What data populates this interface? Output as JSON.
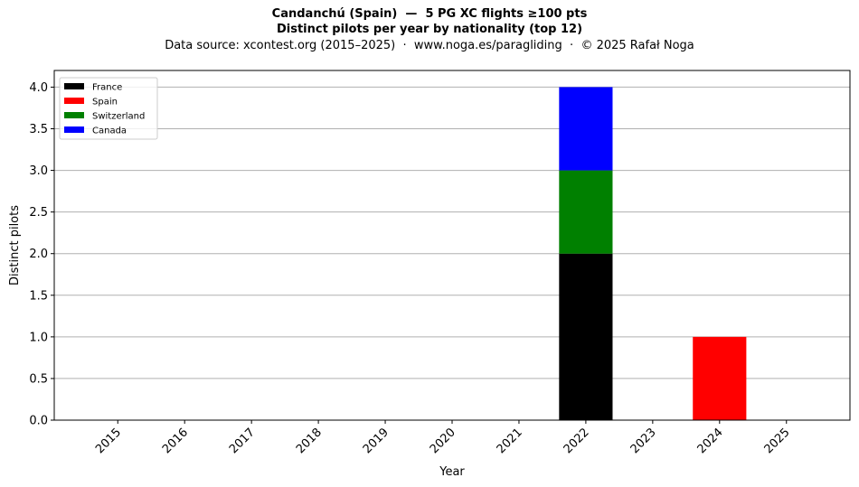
{
  "header": {
    "title_line1": "Candanchú (Spain)  —  5 PG XC flights ≥100 pts",
    "title_line2": "Distinct pilots per year by nationality (top 12)",
    "subtitle": "Data source: xcontest.org (2015–2025)  ·  www.noga.es/paragliding  ·  © 2025 Rafał Noga"
  },
  "chart_data": {
    "type": "bar",
    "stacked": true,
    "categories": [
      "2015",
      "2016",
      "2017",
      "2018",
      "2019",
      "2020",
      "2021",
      "2022",
      "2023",
      "2024",
      "2025"
    ],
    "series": [
      {
        "name": "France",
        "color": "#000000",
        "values": [
          0,
          0,
          0,
          0,
          0,
          0,
          0,
          2,
          0,
          0,
          0
        ]
      },
      {
        "name": "Spain",
        "color": "#ff0000",
        "values": [
          0,
          0,
          0,
          0,
          0,
          0,
          0,
          0,
          0,
          1,
          0
        ]
      },
      {
        "name": "Switzerland",
        "color": "#008000",
        "values": [
          0,
          0,
          0,
          0,
          0,
          0,
          0,
          1,
          0,
          0,
          0
        ]
      },
      {
        "name": "Canada",
        "color": "#0000ff",
        "values": [
          0,
          0,
          0,
          0,
          0,
          0,
          0,
          1,
          0,
          0,
          0
        ]
      }
    ],
    "xlabel": "Year",
    "ylabel": "Distinct pilots",
    "ylim": [
      0,
      4.2
    ],
    "yticks": [
      "0.0",
      "0.5",
      "1.0",
      "1.5",
      "2.0",
      "2.5",
      "3.0",
      "3.5",
      "4.0"
    ],
    "grid": "y",
    "legend": "top-left"
  }
}
